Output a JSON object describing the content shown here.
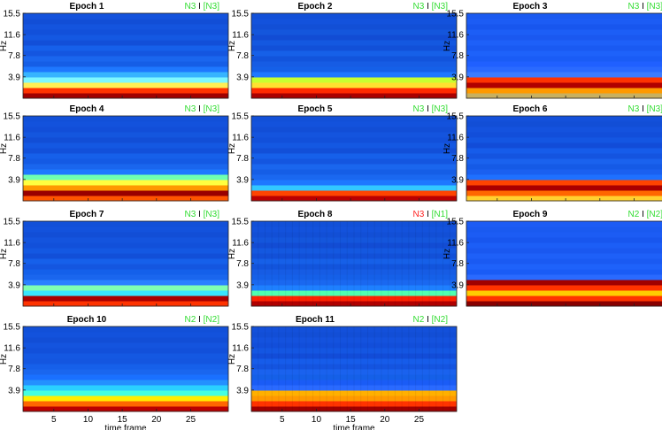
{
  "chart_data": {
    "type": "heatmap",
    "x_ticks": [
      5,
      10,
      15,
      20,
      25
    ],
    "x_range": [
      1,
      30
    ],
    "y_ticks": [
      "3.9",
      "7.8",
      "11.6",
      "15.5"
    ],
    "y_range": [
      0,
      15.5
    ],
    "xlabel": "time frame",
    "ylabel": "Hz",
    "colors": {
      "correct": "#33dd33",
      "incorrect": "#ff2222",
      "text": "#000000"
    },
    "panels": [
      {
        "title": "Epoch 1",
        "predicted": "N3",
        "sep": "I",
        "actual": "[N3]",
        "correct": true,
        "has_xlabel": false
      },
      {
        "title": "Epoch 2",
        "predicted": "N3",
        "sep": "I",
        "actual": "[N3]",
        "correct": true,
        "has_xlabel": false
      },
      {
        "title": "Epoch 3",
        "predicted": "N3",
        "sep": "I",
        "actual": "[N3]",
        "correct": true,
        "has_xlabel": false
      },
      {
        "title": "Epoch 4",
        "predicted": "N3",
        "sep": "I",
        "actual": "[N3]",
        "correct": true,
        "has_xlabel": false
      },
      {
        "title": "Epoch 5",
        "predicted": "N3",
        "sep": "I",
        "actual": "[N3]",
        "correct": true,
        "has_xlabel": false
      },
      {
        "title": "Epoch 6",
        "predicted": "N3",
        "sep": "I",
        "actual": "[N3]",
        "correct": true,
        "has_xlabel": false
      },
      {
        "title": "Epoch 7",
        "predicted": "N3",
        "sep": "I",
        "actual": "[N3]",
        "correct": true,
        "has_xlabel": false
      },
      {
        "title": "Epoch 8",
        "predicted": "N3",
        "sep": "I",
        "actual": "[N1]",
        "correct": false,
        "has_xlabel": false
      },
      {
        "title": "Epoch 9",
        "predicted": "N2",
        "sep": "I",
        "actual": "[N2]",
        "correct": true,
        "has_xlabel": false
      },
      {
        "title": "Epoch 10",
        "predicted": "N2",
        "sep": "I",
        "actual": "[N2]",
        "correct": true,
        "has_xlabel": true
      },
      {
        "title": "Epoch 11",
        "predicted": "N2",
        "sep": "I",
        "actual": "[N2]",
        "correct": true,
        "has_xlabel": true
      }
    ]
  }
}
